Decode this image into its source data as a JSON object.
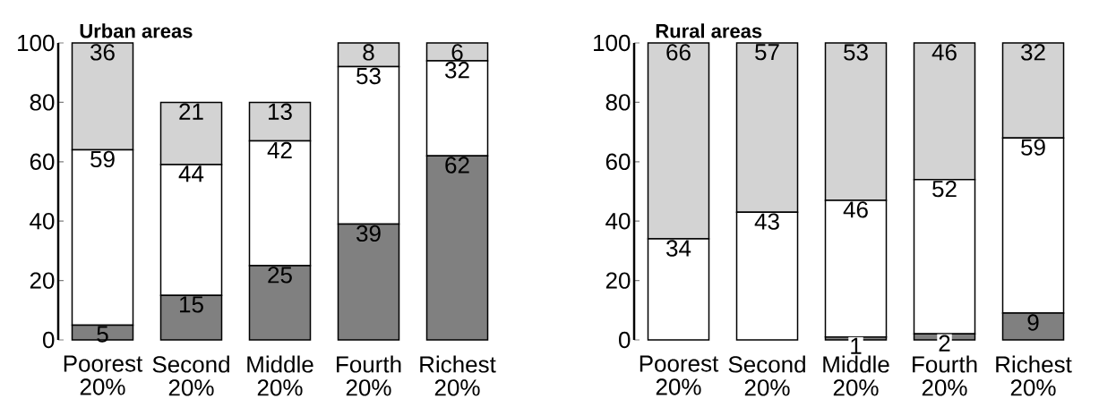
{
  "chart_data": [
    {
      "type": "bar",
      "title": "Urban areas",
      "stacked": true,
      "categories": [
        "Poorest 20%",
        "Second 20%",
        "Middle 20%",
        "Fourth 20%",
        "Richest 20%"
      ],
      "ylim": [
        0,
        100
      ],
      "yticks": [
        0,
        20,
        40,
        60,
        80,
        100
      ],
      "series": [
        {
          "color": "#808080",
          "values": [
            5,
            15,
            25,
            39,
            62
          ],
          "value_labels": [
            "5",
            "15",
            "25",
            "39",
            "62"
          ]
        },
        {
          "color": "#ffffff",
          "values": [
            59,
            44,
            42,
            53,
            32
          ],
          "value_labels": [
            "59",
            "44",
            "42",
            "53",
            "32"
          ]
        },
        {
          "color": "#d3d3d3",
          "values": [
            36,
            21,
            13,
            8,
            6
          ],
          "value_labels": [
            "36",
            "21",
            "13",
            "8",
            "6"
          ]
        }
      ]
    },
    {
      "type": "bar",
      "title": "Rural areas",
      "stacked": true,
      "categories": [
        "Poorest 20%",
        "Second 20%",
        "Middle 20%",
        "Fourth 20%",
        "Richest 20%"
      ],
      "ylim": [
        0,
        100
      ],
      "yticks": [
        0,
        20,
        40,
        60,
        80,
        100
      ],
      "series": [
        {
          "color": "#808080",
          "values": [
            0,
            0,
            1,
            2,
            9
          ],
          "value_labels": [
            null,
            null,
            "1",
            "2",
            "9"
          ]
        },
        {
          "color": "#ffffff",
          "values": [
            34,
            43,
            46,
            52,
            59
          ],
          "value_labels": [
            "34",
            "43",
            "46",
            "52",
            "59"
          ]
        },
        {
          "color": "#d3d3d3",
          "values": [
            66,
            57,
            53,
            46,
            32
          ],
          "value_labels": [
            "66",
            "57",
            "53",
            "46",
            "32"
          ]
        }
      ]
    }
  ]
}
